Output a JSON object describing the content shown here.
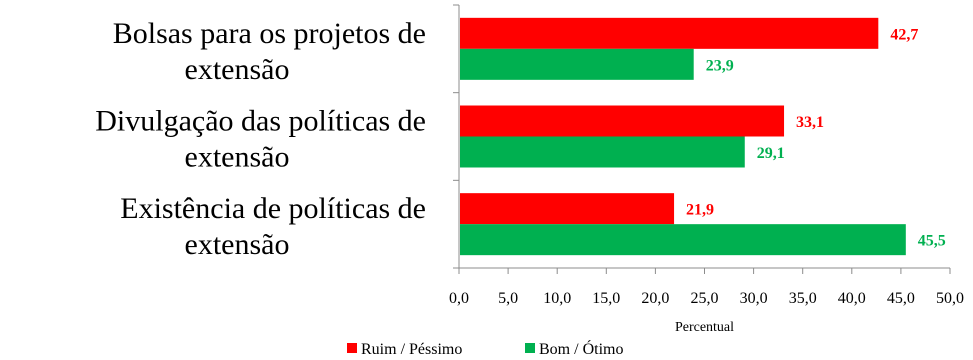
{
  "chart_data": {
    "type": "bar",
    "orientation": "horizontal",
    "categories": [
      [
        "Bolsas para os projetos de",
        "extensão"
      ],
      [
        "Divulgação das políticas de",
        "extensão"
      ],
      [
        "Existência de políticas de",
        "extensão"
      ]
    ],
    "series": [
      {
        "name": "Ruim / Péssimo",
        "color": "#ff0000",
        "values": [
          42.7,
          33.1,
          21.9
        ],
        "labels": [
          "42,7",
          "33,1",
          "21,9"
        ]
      },
      {
        "name": "Bom / Ótimo",
        "color": "#00b050",
        "values": [
          23.9,
          29.1,
          45.5
        ],
        "labels": [
          "23,9",
          "29,1",
          "45,5"
        ]
      }
    ],
    "xlabel": "Percentual",
    "xlim": [
      0,
      50
    ],
    "xticks": [
      0,
      5,
      10,
      15,
      20,
      25,
      30,
      35,
      40,
      45,
      50
    ],
    "xtick_labels": [
      "0,0",
      "5,0",
      "10,0",
      "15,0",
      "20,0",
      "25,0",
      "30,0",
      "35,0",
      "40,0",
      "45,0",
      "50,0"
    ],
    "grid": false,
    "legend": "bottom"
  }
}
